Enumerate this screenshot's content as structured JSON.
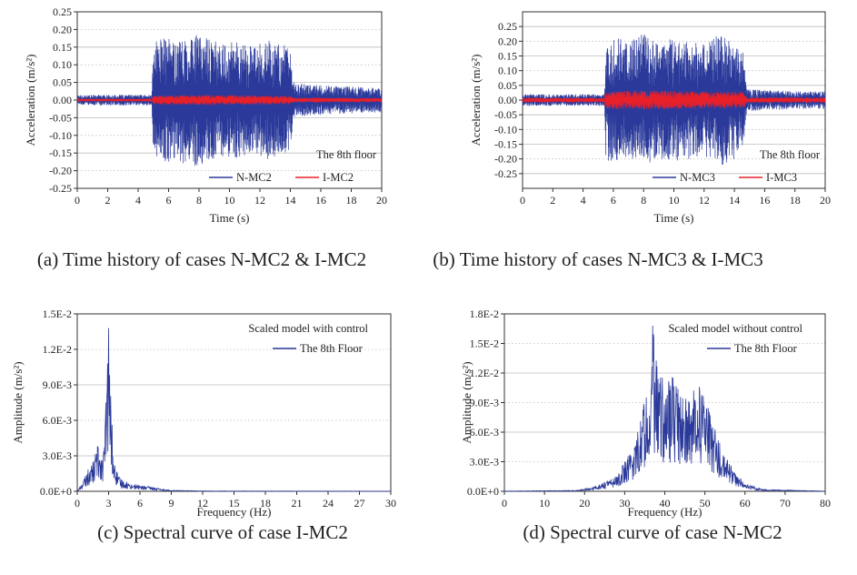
{
  "chart_data": [
    {
      "id": "a",
      "type": "line",
      "caption": "(a) Time history of cases N-MC2 & I-MC2",
      "xlabel": "Time (s)",
      "ylabel": "Acceleration (m/s²)",
      "xlim": [
        0,
        20
      ],
      "ylim": [
        -0.25,
        0.25
      ],
      "xticks": [
        "0",
        "2",
        "4",
        "6",
        "8",
        "10",
        "12",
        "14",
        "16",
        "18",
        "20"
      ],
      "yticks": [
        "0.25",
        "0.20",
        "0.15",
        "0.10",
        "0.05",
        "0.00",
        "-0.05",
        "-0.10",
        "-0.15",
        "-0.20",
        "-0.25"
      ],
      "annotation": "The 8th floor",
      "legend_position": "bottom-right",
      "series": [
        {
          "name": "N-MC2",
          "color": "#2b3a9a",
          "envelope_t": [
            0,
            4.9,
            5.0,
            5.5,
            6.5,
            7.5,
            8.5,
            9.5,
            10.5,
            11.5,
            12.5,
            13.5,
            14.0,
            14.2,
            15,
            17,
            20
          ],
          "envelope_a": [
            0.015,
            0.015,
            0.16,
            0.18,
            0.17,
            0.19,
            0.18,
            0.16,
            0.17,
            0.15,
            0.17,
            0.16,
            0.14,
            0.05,
            0.045,
            0.04,
            0.035
          ]
        },
        {
          "name": "I-MC2",
          "color": "#e8202a",
          "envelope_t": [
            0,
            4.9,
            5.0,
            8,
            11,
            14,
            14.2,
            20
          ],
          "envelope_a": [
            0.004,
            0.004,
            0.012,
            0.014,
            0.013,
            0.012,
            0.007,
            0.006
          ]
        }
      ]
    },
    {
      "id": "b",
      "type": "line",
      "caption": "(b) Time history of cases N-MC3 & I-MC3",
      "xlabel": "Time (s)",
      "ylabel": "Acceleration (m/s²)",
      "xlim": [
        0,
        20
      ],
      "ylim": [
        -0.3,
        0.3
      ],
      "xticks": [
        "0",
        "2",
        "4",
        "6",
        "8",
        "10",
        "12",
        "14",
        "16",
        "18",
        "20"
      ],
      "yticks": [
        "0.25",
        "0.20",
        "0.15",
        "0.10",
        "0.05",
        "0.00",
        "-0.05",
        "-0.10",
        "-0.15",
        "-0.20",
        "-0.25"
      ],
      "ytick_values": [
        0.25,
        0.2,
        0.15,
        0.1,
        0.05,
        0,
        -0.05,
        -0.1,
        -0.15,
        -0.2,
        -0.25
      ],
      "annotation": "The 8th floor",
      "legend_position": "bottom-right",
      "series": [
        {
          "name": "N-MC3",
          "color": "#2b3a9a",
          "envelope_t": [
            0,
            5.4,
            5.5,
            6.0,
            7.0,
            8.0,
            9.0,
            10.0,
            11.0,
            12.0,
            13.0,
            14.0,
            14.6,
            14.8,
            16,
            18,
            20
          ],
          "envelope_a": [
            0.02,
            0.02,
            0.2,
            0.22,
            0.2,
            0.23,
            0.2,
            0.21,
            0.2,
            0.19,
            0.23,
            0.2,
            0.18,
            0.04,
            0.035,
            0.03,
            0.03
          ]
        },
        {
          "name": "I-MC3",
          "color": "#e8202a",
          "envelope_t": [
            0,
            5.4,
            5.5,
            8,
            11,
            14.6,
            14.8,
            20
          ],
          "envelope_a": [
            0.008,
            0.008,
            0.03,
            0.032,
            0.03,
            0.028,
            0.01,
            0.009
          ]
        }
      ]
    },
    {
      "id": "c",
      "type": "line",
      "caption": "(c) Spectral curve of case I-MC2",
      "xlabel": "Frequency (Hz)",
      "ylabel": "Amplitude (m/s²)",
      "xlim": [
        0,
        30
      ],
      "ylim": [
        0,
        0.015
      ],
      "xticks": [
        "0",
        "3",
        "6",
        "9",
        "12",
        "15",
        "18",
        "21",
        "24",
        "27",
        "30"
      ],
      "yticks": [
        "1.5E-2",
        "1.2E-2",
        "9.0E-3",
        "6.0E-3",
        "3.0E-3",
        "0.0E+0"
      ],
      "annotation": "Scaled model with control",
      "legend_position": "top-right",
      "series": [
        {
          "name": "The 8th Floor",
          "color": "#2b3a9a",
          "peak_hz": 3.0,
          "peak_amplitude": 0.0138,
          "envelope_f": [
            0,
            0.5,
            1.0,
            1.5,
            2.0,
            2.5,
            2.8,
            3.0,
            3.2,
            3.5,
            4.0,
            5.0,
            6.0,
            7.0,
            8.0,
            9.0,
            12.0,
            30.0
          ],
          "envelope_a": [
            0.0,
            0.0008,
            0.0018,
            0.0025,
            0.0042,
            0.0032,
            0.009,
            0.0138,
            0.0085,
            0.0025,
            0.0012,
            0.0007,
            0.0005,
            0.0004,
            0.0002,
            0.0001,
            3e-05,
            1e-05
          ]
        }
      ]
    },
    {
      "id": "d",
      "type": "line",
      "caption": "(d) Spectral curve of case N-MC2",
      "xlabel": "Frequency (Hz)",
      "ylabel": "Amplitude (m/s²)",
      "xlim": [
        0,
        80
      ],
      "ylim": [
        0,
        0.018
      ],
      "xticks": [
        "0",
        "10",
        "20",
        "30",
        "40",
        "50",
        "60",
        "70",
        "80"
      ],
      "yticks": [
        "1.8E-2",
        "1.5E-2",
        "1.2E-2",
        "9.0E-3",
        "6.0E-3",
        "3.0E-3",
        "0.0E+0"
      ],
      "annotation": "Scaled model without control",
      "legend_position": "top-right",
      "series": [
        {
          "name": "The 8th Floor",
          "color": "#2b3a9a",
          "peak_hz": 37.0,
          "peak_amplitude": 0.0168,
          "envelope_f": [
            0,
            18,
            22,
            25,
            28,
            30,
            32,
            34,
            36,
            37,
            38,
            40,
            42,
            44,
            46,
            48,
            50,
            52,
            54,
            56,
            58,
            60,
            65,
            80
          ],
          "envelope_a": [
            2e-05,
            0.0001,
            0.0004,
            0.001,
            0.0016,
            0.003,
            0.0045,
            0.0075,
            0.0125,
            0.0168,
            0.0128,
            0.011,
            0.0118,
            0.0105,
            0.0092,
            0.0112,
            0.0098,
            0.0072,
            0.0045,
            0.003,
            0.0018,
            0.0008,
            0.0002,
            2e-05
          ]
        }
      ]
    }
  ]
}
